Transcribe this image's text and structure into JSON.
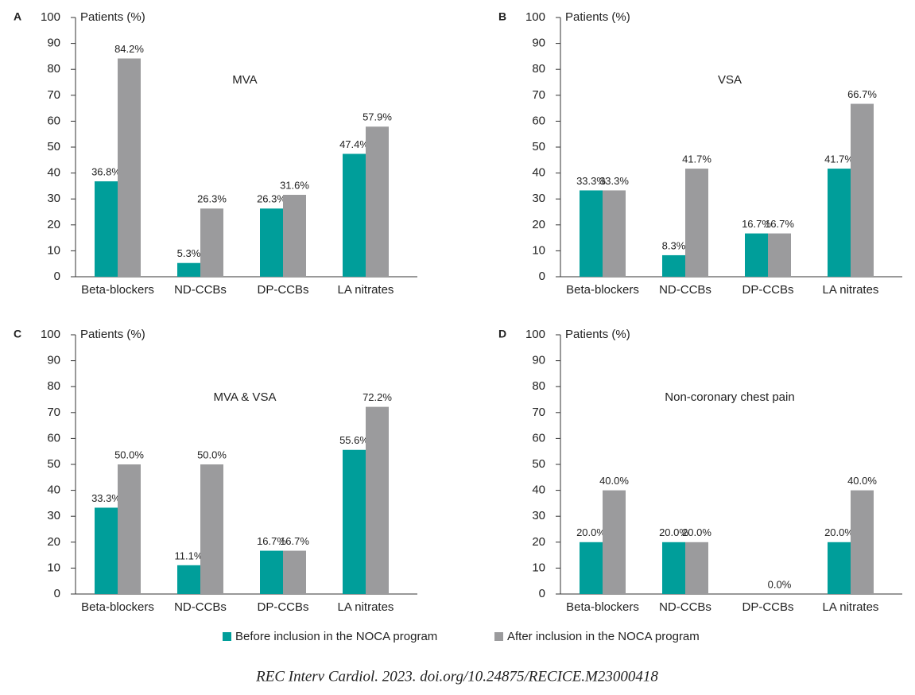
{
  "chart_data": [
    {
      "type": "bar",
      "panel": "A",
      "title": "MVA",
      "ylabel": "Patients (%)",
      "categories": [
        "Beta-blockers",
        "ND-CCBs",
        "DP-CCBs",
        "LA nitrates"
      ],
      "ylim": [
        0,
        100
      ],
      "yticks": [
        0,
        10,
        20,
        30,
        40,
        50,
        60,
        70,
        80,
        90,
        100
      ],
      "series": [
        {
          "color": "#009e9a",
          "values": [
            36.8,
            5.3,
            26.3,
            47.4
          ],
          "value_labels": [
            "36.8%",
            "5.3%",
            "26.3%",
            "47.4%"
          ]
        },
        {
          "color": "#9b9b9d",
          "values": [
            84.2,
            26.3,
            31.6,
            57.9
          ],
          "value_labels": [
            "84.2%",
            "26.3%",
            "31.6%",
            "57.9%"
          ]
        }
      ]
    },
    {
      "type": "bar",
      "panel": "B",
      "title": "VSA",
      "ylabel": "Patients (%)",
      "categories": [
        "Beta-blockers",
        "ND-CCBs",
        "DP-CCBs",
        "LA nitrates"
      ],
      "ylim": [
        0,
        100
      ],
      "yticks": [
        0,
        10,
        20,
        30,
        40,
        50,
        60,
        70,
        80,
        90,
        100
      ],
      "series": [
        {
          "color": "#009e9a",
          "values": [
            33.3,
            8.3,
            16.7,
            41.7
          ],
          "value_labels": [
            "33.3%",
            "8.3%",
            "16.7%",
            "41.7%"
          ]
        },
        {
          "color": "#9b9b9d",
          "values": [
            33.3,
            41.7,
            16.7,
            66.7
          ],
          "value_labels": [
            "33.3%",
            "41.7%",
            "16.7%",
            "66.7%"
          ]
        }
      ]
    },
    {
      "type": "bar",
      "panel": "C",
      "title": "MVA & VSA",
      "ylabel": "Patients (%)",
      "categories": [
        "Beta-blockers",
        "ND-CCBs",
        "DP-CCBs",
        "LA nitrates"
      ],
      "ylim": [
        0,
        100
      ],
      "yticks": [
        0,
        10,
        20,
        30,
        40,
        50,
        60,
        70,
        80,
        90,
        100
      ],
      "series": [
        {
          "color": "#009e9a",
          "values": [
            33.3,
            11.1,
            16.7,
            55.6
          ],
          "value_labels": [
            "33.3%",
            "11.1%",
            "16.7%",
            "55.6%"
          ]
        },
        {
          "color": "#9b9b9d",
          "values": [
            50.0,
            50.0,
            16.7,
            72.2
          ],
          "value_labels": [
            "50.0%",
            "50.0%",
            "16.7%",
            "72.2%"
          ]
        }
      ]
    },
    {
      "type": "bar",
      "panel": "D",
      "title": "Non-coronary chest pain",
      "ylabel": "Patients (%)",
      "categories": [
        "Beta-blockers",
        "ND-CCBs",
        "DP-CCBs",
        "LA nitrates"
      ],
      "ylim": [
        0,
        100
      ],
      "yticks": [
        0,
        10,
        20,
        30,
        40,
        50,
        60,
        70,
        80,
        90,
        100
      ],
      "series": [
        {
          "color": "#009e9a",
          "values": [
            20.0,
            20.0,
            0.0,
            20.0
          ],
          "value_labels": [
            "20.0%",
            "20.0%",
            null,
            "20.0%"
          ]
        },
        {
          "color": "#9b9b9d",
          "values": [
            40.0,
            20.0,
            0.0,
            40.0
          ],
          "value_labels": [
            "40.0%",
            "20.0%",
            "0.0%",
            "40.0%"
          ]
        }
      ]
    }
  ],
  "legend": [
    {
      "name": "Before inclusion in the NOCA program",
      "color": "#009e9a"
    },
    {
      "name": "After inclusion in the NOCA program",
      "color": "#9b9b9d"
    }
  ],
  "citation": "REC Interv Cardiol. 2023. doi.org/10.24875/RECICE.M23000418"
}
